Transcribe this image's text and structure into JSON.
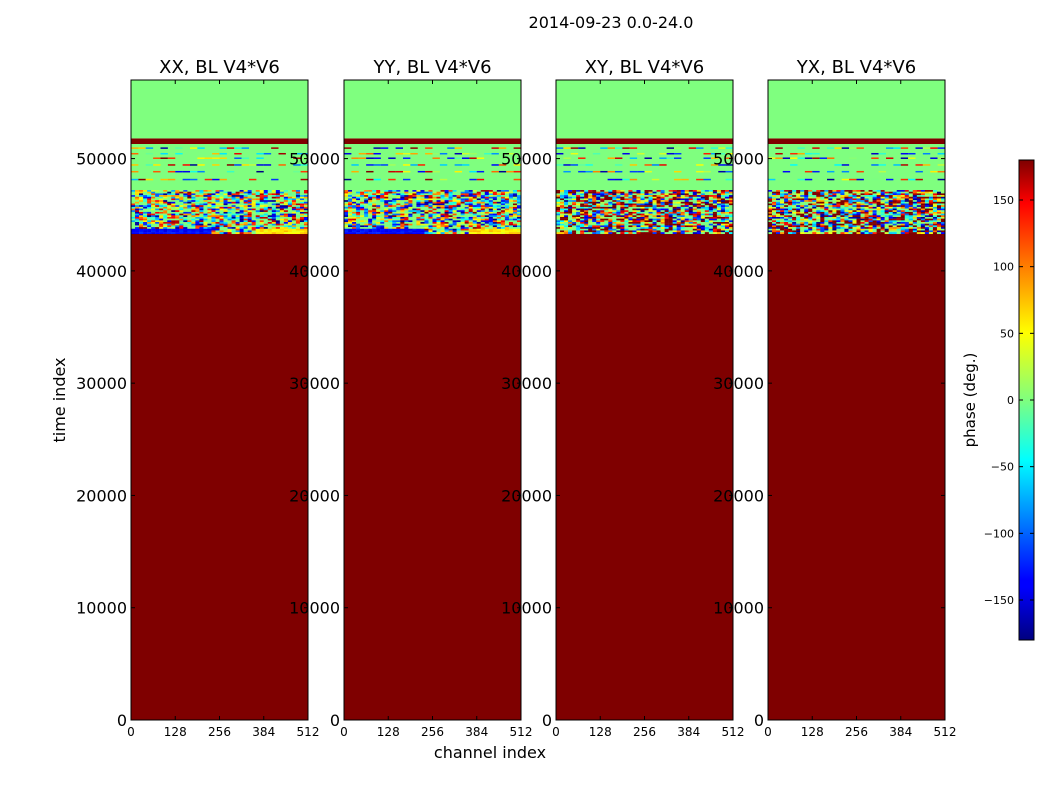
{
  "figure_title": "2014-09-23 0.0-24.0",
  "chart_data": {
    "type": "heatmap",
    "title": "2014-09-23 0.0-24.0",
    "ylabel": "time index",
    "xlabel": "channel index",
    "xlim": [
      0,
      512
    ],
    "ylim": [
      0,
      57000
    ],
    "x_ticks": [
      0,
      128,
      256,
      384,
      512
    ],
    "y_ticks": [
      0,
      10000,
      20000,
      30000,
      40000,
      50000
    ],
    "panels": [
      {
        "title": "XX, BL V4*V6",
        "noise_style": "xx"
      },
      {
        "title": "YY, BL V4*V6",
        "noise_style": "yy"
      },
      {
        "title": "XY, BL V4*V6",
        "noise_style": "cross"
      },
      {
        "title": "YX, BL V4*V6",
        "noise_style": "cross"
      }
    ],
    "bands": [
      {
        "from": 0,
        "to": 43300,
        "phase": 180,
        "label": "constant"
      },
      {
        "from": 43300,
        "to": 47200,
        "phase": null,
        "label": "noisy phase"
      },
      {
        "from": 47200,
        "to": 51300,
        "phase": 0,
        "label": "mostly zero with thin lines"
      },
      {
        "from": 51300,
        "to": 51800,
        "phase": 180,
        "label": "thin constant band"
      },
      {
        "from": 51800,
        "to": 57000,
        "phase": 0,
        "label": "constant"
      }
    ],
    "colorbar": {
      "label": "phase (deg.)",
      "range": [
        -180,
        180
      ],
      "ticks": [
        -150,
        -100,
        -50,
        0,
        50,
        100,
        150
      ],
      "colormap": "jet"
    }
  }
}
